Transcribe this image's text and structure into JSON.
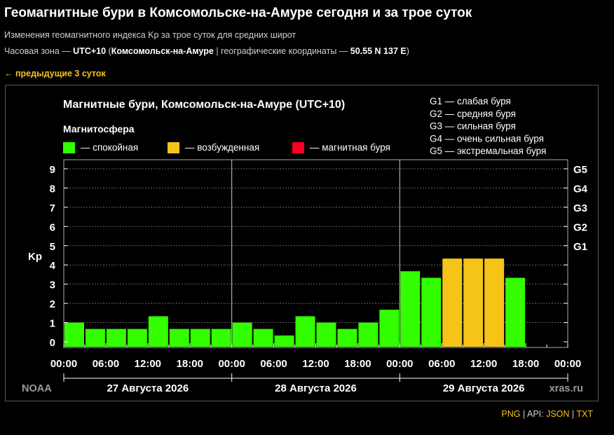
{
  "header": {
    "title": "Геомагнитные бури в Комсомольске-на-Амуре сегодня и за трое суток",
    "subtitle": "Изменения геомагнитного индекса Kp за трое суток для средних широт",
    "tz_prefix": "Часовая зона — ",
    "tz_value": "UTC+10",
    "tz_open": " (",
    "city": "Комсомольск-на-Амуре",
    "coords_prefix": " | географические координаты — ",
    "coords_value": "50.55 N 137 E",
    "tz_close": ")",
    "prev_link": "← предыдущие 3 суток"
  },
  "footer": {
    "png": "PNG",
    "sep1": " | ",
    "api_label": "API: ",
    "json": "JSON",
    "sep2": " | ",
    "txt": "TXT"
  },
  "chart_data": {
    "type": "bar",
    "title": "Магнитные бури, Комсомольск-на-Амуре (UTC+10)",
    "legend_title": "Магнитосфера",
    "legend": [
      {
        "label": "— спокойная",
        "color": "#33ff00"
      },
      {
        "label": "— возбужденная",
        "color": "#f6c417"
      },
      {
        "label": "— магнитная буря",
        "color": "#ff0020"
      }
    ],
    "g_legend": [
      "G1 — слабая буря",
      "G2 — средняя буря",
      "G3 — сильная буря",
      "G4 — очень сильная буря",
      "G5 — экстремальная буря"
    ],
    "ylabel": "Kp",
    "ylim": [
      0,
      9
    ],
    "y_ticks": [
      0,
      1,
      2,
      3,
      4,
      5,
      6,
      7,
      8,
      9
    ],
    "g_levels": [
      {
        "label": "G1",
        "kp": 5
      },
      {
        "label": "G2",
        "kp": 6
      },
      {
        "label": "G3",
        "kp": 7
      },
      {
        "label": "G4",
        "kp": 8
      },
      {
        "label": "G5",
        "kp": 9
      }
    ],
    "x_tick_labels": [
      "00:00",
      "06:00",
      "12:00",
      "18:00",
      "00:00",
      "06:00",
      "12:00",
      "18:00",
      "00:00",
      "06:00",
      "12:00",
      "18:00",
      "00:00"
    ],
    "days": [
      "27 Августа 2026",
      "28 Августа 2026",
      "29 Августа 2026"
    ],
    "interval_hours": 3,
    "values": [
      1.0,
      0.67,
      0.67,
      0.67,
      1.33,
      0.67,
      0.67,
      0.67,
      1.0,
      0.67,
      0.33,
      1.33,
      1.0,
      0.67,
      1.0,
      1.67,
      3.67,
      3.33,
      4.33,
      4.33,
      4.33,
      3.33
    ],
    "colors": {
      "quiet": "#33ff00",
      "active": "#f6c417",
      "storm": "#ff0020"
    },
    "source_left": "NOAA",
    "source_right": "xras.ru",
    "grid": true
  }
}
